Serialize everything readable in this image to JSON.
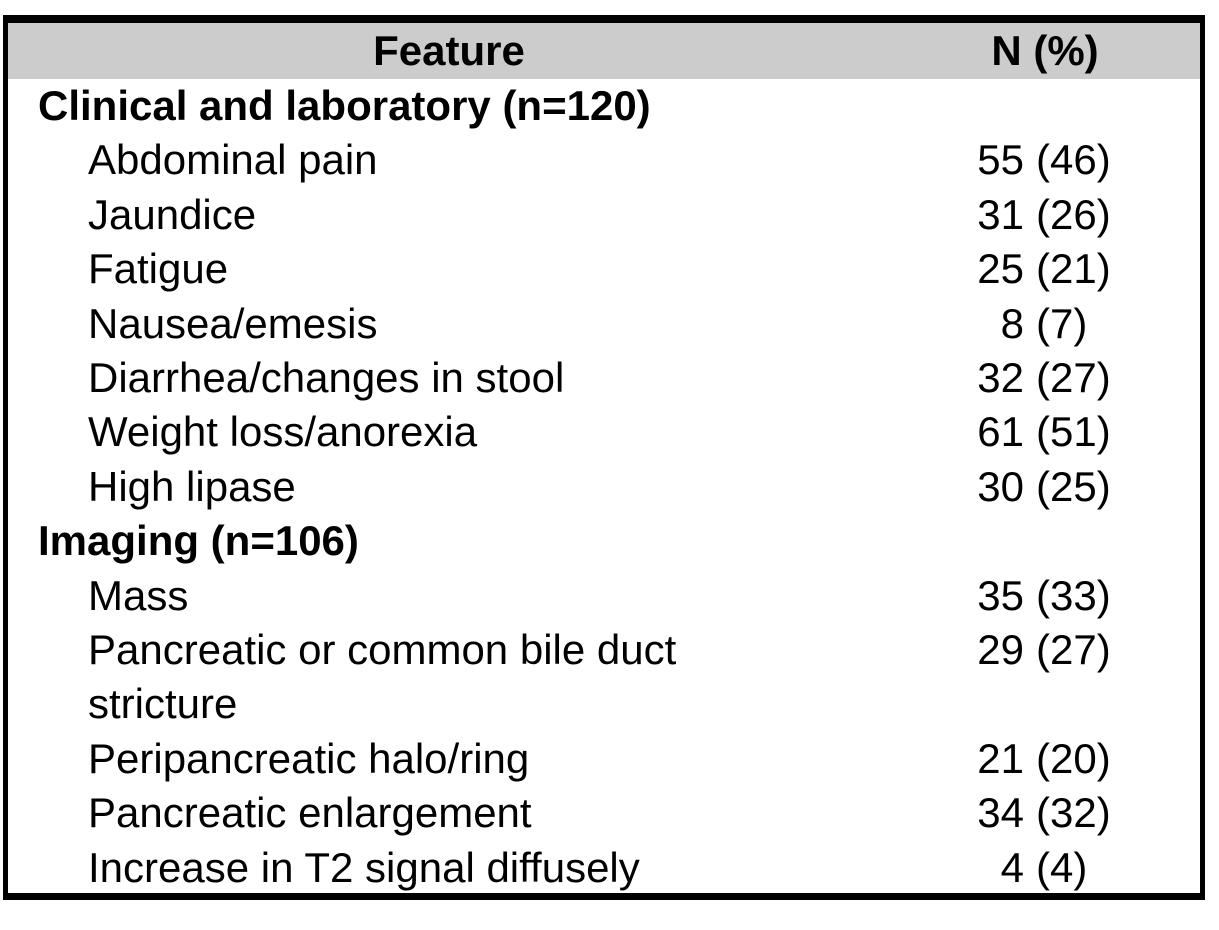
{
  "colors": {
    "header_bg": "#cccccc",
    "border": "#000000",
    "text": "#000000",
    "background": "#ffffff"
  },
  "table": {
    "columns": [
      "Feature",
      "N (%)"
    ],
    "rows": [
      {
        "type": "section",
        "label": "Clinical and laboratory (n=120)"
      },
      {
        "type": "item",
        "label": "Abdominal pain",
        "n": "55",
        "pct": "(46)"
      },
      {
        "type": "item",
        "label": "Jaundice",
        "n": "31",
        "pct": "(26)"
      },
      {
        "type": "item",
        "label": "Fatigue",
        "n": "25",
        "pct": "(21)"
      },
      {
        "type": "item",
        "label": "Nausea/emesis",
        "n": "8",
        "pct": "(7)"
      },
      {
        "type": "item",
        "label": "Diarrhea/changes in stool",
        "n": "32",
        "pct": "(27)"
      },
      {
        "type": "item",
        "label": "Weight loss/anorexia",
        "n": "61",
        "pct": "(51)"
      },
      {
        "type": "item",
        "label": "High lipase",
        "n": "30",
        "pct": "(25)"
      },
      {
        "type": "section",
        "label": "Imaging (n=106)"
      },
      {
        "type": "item",
        "label": "Mass",
        "n": "35",
        "pct": "(33)"
      },
      {
        "type": "item",
        "label": "Pancreatic or common bile duct\nstricture",
        "n": "29",
        "pct": "(27)"
      },
      {
        "type": "item",
        "label": "Peripancreatic halo/ring",
        "n": "21",
        "pct": "(20)"
      },
      {
        "type": "item",
        "label": "Pancreatic enlargement",
        "n": "34",
        "pct": "(32)"
      },
      {
        "type": "item",
        "label": "Increase in T2 signal diffusely",
        "n": "4",
        "pct": "(4)"
      }
    ]
  }
}
